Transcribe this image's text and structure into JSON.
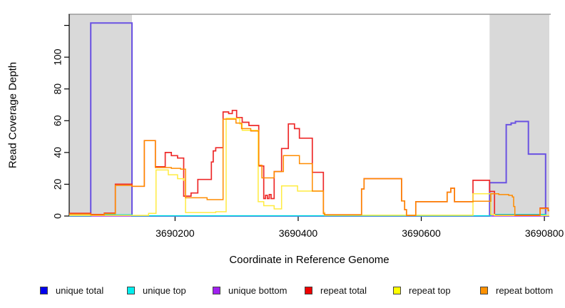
{
  "chart_data": {
    "type": "line",
    "subtype": "step",
    "title": "",
    "xlabel": "Coordinate in Reference Genome",
    "ylabel": "Read Coverage Depth",
    "xlim": [
      3690028,
      3690808
    ],
    "ylim": [
      0,
      127
    ],
    "x_ticks": [
      3690200,
      3690400,
      3690600,
      3690800
    ],
    "x_tick_labels": [
      "3690200",
      "3690400",
      "3690600",
      "3690800"
    ],
    "y_ticks": [
      0,
      20,
      40,
      60,
      80,
      100,
      120
    ],
    "y_tick_labels": [
      "0",
      "20",
      "40",
      "60",
      "80",
      "100",
      ""
    ],
    "grid": false,
    "legend_position": "bottom",
    "shaded_x_ranges": [
      [
        3690028,
        3690130
      ],
      [
        3690711,
        3690808
      ]
    ],
    "shade_color": "#d9d9d9",
    "series": [
      {
        "name": "unique bottom",
        "color": "#a020f0",
        "width": 1.5,
        "points": [
          [
            3690028,
            0
          ],
          [
            3690808,
            0
          ]
        ]
      },
      {
        "name": "unique total",
        "color": "#6a52e2",
        "width": 2,
        "points": [
          [
            3690028,
            0
          ],
          [
            3690063,
            121.5
          ],
          [
            3690130,
            0
          ],
          [
            3690711,
            21
          ],
          [
            3690738,
            57.5
          ],
          [
            3690746,
            58.5
          ],
          [
            3690753,
            59.5
          ],
          [
            3690774,
            39
          ],
          [
            3690802,
            0
          ],
          [
            3690808,
            0
          ]
        ]
      },
      {
        "name": "unique top",
        "color": "#00dede",
        "width": 1.5,
        "points": [
          [
            3690028,
            0.2
          ],
          [
            3690063,
            0.8
          ],
          [
            3690130,
            0.2
          ],
          [
            3690713,
            1
          ],
          [
            3690802,
            0.3
          ],
          [
            3690808,
            0.3
          ]
        ]
      },
      {
        "name": "repeat total",
        "color": "#ee2a2a",
        "width": 1.7,
        "points": [
          [
            3690028,
            1.7
          ],
          [
            3690063,
            1
          ],
          [
            3690085,
            1.8
          ],
          [
            3690103,
            20
          ],
          [
            3690130,
            18.7
          ],
          [
            3690150,
            47.5
          ],
          [
            3690168,
            31
          ],
          [
            3690184,
            40
          ],
          [
            3690194,
            38
          ],
          [
            3690204,
            36.5
          ],
          [
            3690214,
            12.5
          ],
          [
            3690226,
            14.5
          ],
          [
            3690237,
            23
          ],
          [
            3690259,
            34
          ],
          [
            3690262,
            41
          ],
          [
            3690266,
            43
          ],
          [
            3690278,
            65.5
          ],
          [
            3690287,
            64.5
          ],
          [
            3690293,
            66.5
          ],
          [
            3690300,
            62
          ],
          [
            3690309,
            59
          ],
          [
            3690320,
            57
          ],
          [
            3690336,
            31.5
          ],
          [
            3690344,
            11
          ],
          [
            3690347,
            13
          ],
          [
            3690350,
            11
          ],
          [
            3690353,
            13.5
          ],
          [
            3690356,
            11
          ],
          [
            3690361,
            28
          ],
          [
            3690373,
            42.5
          ],
          [
            3690384,
            58
          ],
          [
            3690394,
            55
          ],
          [
            3690402,
            49
          ],
          [
            3690423,
            27.5
          ],
          [
            3690441,
            2
          ],
          [
            3690443,
            0.8
          ],
          [
            3690503,
            17
          ],
          [
            3690507,
            23.5
          ],
          [
            3690568,
            9.5
          ],
          [
            3690573,
            4
          ],
          [
            3690576,
            0.5
          ],
          [
            3690591,
            9
          ],
          [
            3690642,
            15
          ],
          [
            3690648,
            17.5
          ],
          [
            3690654,
            9
          ],
          [
            3690684,
            22.5
          ],
          [
            3690711,
            15.5
          ],
          [
            3690719,
            0.5
          ],
          [
            3690793,
            5
          ],
          [
            3690806,
            3.5
          ],
          [
            3690808,
            3.5
          ]
        ]
      },
      {
        "name": "repeat top",
        "color": "#ffec40",
        "width": 1.5,
        "points": [
          [
            3690028,
            0.4
          ],
          [
            3690157,
            1.7
          ],
          [
            3690169,
            29
          ],
          [
            3690189,
            26
          ],
          [
            3690204,
            23.5
          ],
          [
            3690214,
            22.5
          ],
          [
            3690217,
            2.2
          ],
          [
            3690266,
            2.7
          ],
          [
            3690283,
            61.5
          ],
          [
            3690305,
            58
          ],
          [
            3690309,
            54
          ],
          [
            3690335,
            9
          ],
          [
            3690344,
            6.5
          ],
          [
            3690361,
            4.5
          ],
          [
            3690373,
            19
          ],
          [
            3690399,
            15.7
          ],
          [
            3690441,
            2
          ],
          [
            3690443,
            0.5
          ],
          [
            3690684,
            14
          ],
          [
            3690713,
            1
          ],
          [
            3690719,
            0.3
          ],
          [
            3690808,
            0.3
          ]
        ]
      },
      {
        "name": "repeat bottom",
        "color": "#ff8c00",
        "width": 1.5,
        "points": [
          [
            3690028,
            1.2
          ],
          [
            3690063,
            0.7
          ],
          [
            3690085,
            1.5
          ],
          [
            3690103,
            19.3
          ],
          [
            3690130,
            18.7
          ],
          [
            3690150,
            47.5
          ],
          [
            3690168,
            30.5
          ],
          [
            3690194,
            30
          ],
          [
            3690209,
            29.5
          ],
          [
            3690217,
            11.5
          ],
          [
            3690252,
            10.3
          ],
          [
            3690278,
            61
          ],
          [
            3690299,
            58.5
          ],
          [
            3690308,
            55
          ],
          [
            3690323,
            53.5
          ],
          [
            3690336,
            32
          ],
          [
            3690341,
            24
          ],
          [
            3690361,
            28
          ],
          [
            3690376,
            38
          ],
          [
            3690402,
            33
          ],
          [
            3690423,
            15.7
          ],
          [
            3690441,
            1.5
          ],
          [
            3690443,
            0.8
          ],
          [
            3690503,
            17
          ],
          [
            3690507,
            23.5
          ],
          [
            3690568,
            9.5
          ],
          [
            3690573,
            4
          ],
          [
            3690576,
            0.3
          ],
          [
            3690591,
            9
          ],
          [
            3690642,
            15
          ],
          [
            3690648,
            17.5
          ],
          [
            3690654,
            9
          ],
          [
            3690684,
            9.3
          ],
          [
            3690713,
            14
          ],
          [
            3690726,
            13.5
          ],
          [
            3690742,
            13
          ],
          [
            3690748,
            12
          ],
          [
            3690750,
            6
          ],
          [
            3690752,
            0.3
          ],
          [
            3690793,
            4.7
          ],
          [
            3690806,
            3.3
          ],
          [
            3690808,
            3.3
          ]
        ]
      }
    ]
  },
  "legend": {
    "items": [
      {
        "label": "unique total",
        "color": "#0000ee"
      },
      {
        "label": "unique top",
        "color": "#00eeee"
      },
      {
        "label": "unique bottom",
        "color": "#a020f0"
      },
      {
        "label": "repeat total",
        "color": "#ee0000"
      },
      {
        "label": "repeat top",
        "color": "#ffff00"
      },
      {
        "label": "repeat bottom",
        "color": "#ff9100"
      }
    ],
    "item_x": [
      56,
      178,
      298,
      427,
      551,
      673
    ]
  },
  "axes_colors": {
    "axis": "#000000",
    "plot_top_border": "#9a9a9a"
  }
}
